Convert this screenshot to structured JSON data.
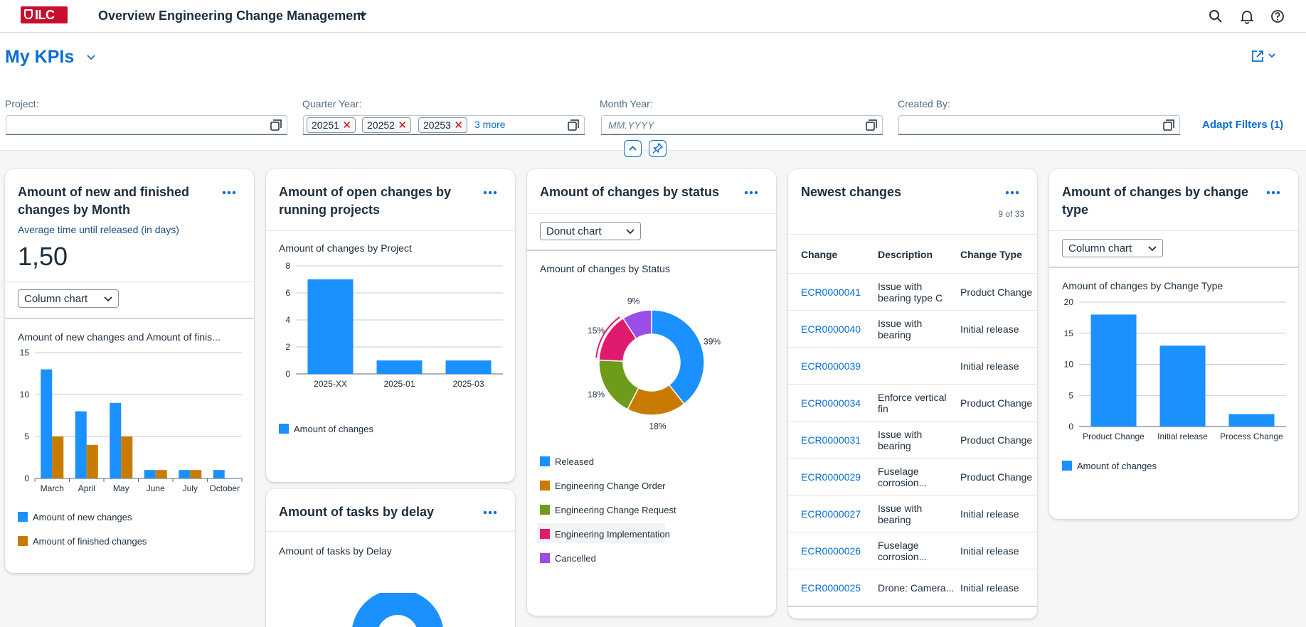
{
  "shell": {
    "logo_text": "ILC",
    "app_title": "Overview Engineering Change Management"
  },
  "header": {
    "variant_title": "My KPIs",
    "filters": {
      "project": {
        "label": "Project:",
        "value": ""
      },
      "quarter_year": {
        "label": "Quarter Year:",
        "tokens": [
          "20251",
          "20252",
          "20253"
        ],
        "more": "3 more"
      },
      "month_year": {
        "label": "Month Year:",
        "placeholder": "MM.YYYY"
      },
      "created_by": {
        "label": "Created By:",
        "value": ""
      }
    },
    "adapt_filters": "Adapt Filters (1)"
  },
  "colors": {
    "blue": "#1b90ff",
    "gold": "#c87b00",
    "green": "#6e9c1a",
    "pink": "#e01b6d",
    "purple": "#9b4de8",
    "accent": "#0a6ed1"
  },
  "card1": {
    "title_line1": "Amount of new and finished",
    "title_line2": "changes by Month",
    "kpi_label": "Average time until released (in days)",
    "kpi_value": "1,50",
    "chart_select": "Column chart",
    "chart_title": "Amount of new changes and Amount of finis...",
    "legend": [
      "Amount of new changes",
      "Amount of finished changes"
    ]
  },
  "card2": {
    "title_line1": "Amount of open changes by",
    "title_line2": "running projects",
    "chart_title": "Amount of changes by Project",
    "legend": [
      "Amount of changes"
    ]
  },
  "card3": {
    "title": "Amount of tasks by delay",
    "chart_title": "Amount of tasks by Delay"
  },
  "card4": {
    "title": "Amount of changes by status",
    "chart_select": "Donut chart",
    "chart_title": "Amount of changes by Status",
    "legend": [
      "Released",
      "Engineering Change Order",
      "Engineering Change Request",
      "Engineering Implementation",
      "Cancelled"
    ]
  },
  "card5": {
    "title": "Newest changes",
    "count": "9 of 33",
    "columns": [
      "Change",
      "Description",
      "Change Type"
    ],
    "rows": [
      {
        "change": "ECR0000041",
        "desc": "Issue with bearing type C",
        "type": "Product Change"
      },
      {
        "change": "ECR0000040",
        "desc": "Issue with bearing",
        "type": "Initial release"
      },
      {
        "change": "ECR0000039",
        "desc": "",
        "type": "Initial release"
      },
      {
        "change": "ECR0000034",
        "desc": "Enforce vertical fin",
        "type": "Product Change"
      },
      {
        "change": "ECR0000031",
        "desc": "Issue with bearing",
        "type": "Product Change"
      },
      {
        "change": "ECR0000029",
        "desc": "Fuselage corrosion...",
        "type": "Product Change"
      },
      {
        "change": "ECR0000027",
        "desc": "Issue with bearing",
        "type": "Initial release"
      },
      {
        "change": "ECR0000026",
        "desc": "Fuselage corrosion...",
        "type": "Initial release"
      },
      {
        "change": "ECR0000025",
        "desc": "Drone: Camera...",
        "type": "Initial release"
      }
    ]
  },
  "card6": {
    "title_line1": "Amount of changes by change",
    "title_line2": "type",
    "chart_select": "Column chart",
    "chart_title": "Amount of changes by Change Type",
    "legend": [
      "Amount of changes"
    ]
  },
  "chart_data": [
    {
      "type": "bar",
      "title": "Amount of new changes and Amount of finis...",
      "categories": [
        "March",
        "April",
        "May",
        "June",
        "July",
        "October"
      ],
      "series": [
        {
          "name": "Amount of new changes",
          "values": [
            13,
            8,
            9,
            1,
            1,
            1
          ]
        },
        {
          "name": "Amount of finished changes",
          "values": [
            5,
            4,
            5,
            1,
            1,
            0
          ]
        }
      ],
      "ylim": [
        0,
        15
      ],
      "yticks": [
        0,
        5,
        10,
        15
      ],
      "legend": "bottom-left"
    },
    {
      "type": "bar",
      "title": "Amount of changes by Project",
      "categories": [
        "2025-XX",
        "2025-01",
        "2025-03"
      ],
      "series": [
        {
          "name": "Amount of changes",
          "values": [
            7,
            1,
            1
          ]
        }
      ],
      "ylim": [
        0,
        8
      ],
      "yticks": [
        0,
        2,
        4,
        6,
        8
      ],
      "legend": "bottom-left"
    },
    {
      "type": "pie",
      "title": "Amount of changes by Status",
      "categories": [
        "Released",
        "Engineering Change Order",
        "Engineering Change Request",
        "Engineering Implementation",
        "Cancelled"
      ],
      "values": [
        39,
        18,
        18,
        15,
        9
      ],
      "labels": [
        "39%",
        "18%",
        "18%",
        "15%",
        "9%"
      ],
      "legend": "bottom-left"
    },
    {
      "type": "bar",
      "title": "Amount of changes by Change Type",
      "categories": [
        "Product Change",
        "Initial release",
        "Process Change"
      ],
      "series": [
        {
          "name": "Amount of changes",
          "values": [
            18,
            13,
            2
          ]
        }
      ],
      "ylim": [
        0,
        20
      ],
      "yticks": [
        0,
        5,
        10,
        15,
        20
      ],
      "legend": "bottom-left"
    }
  ]
}
